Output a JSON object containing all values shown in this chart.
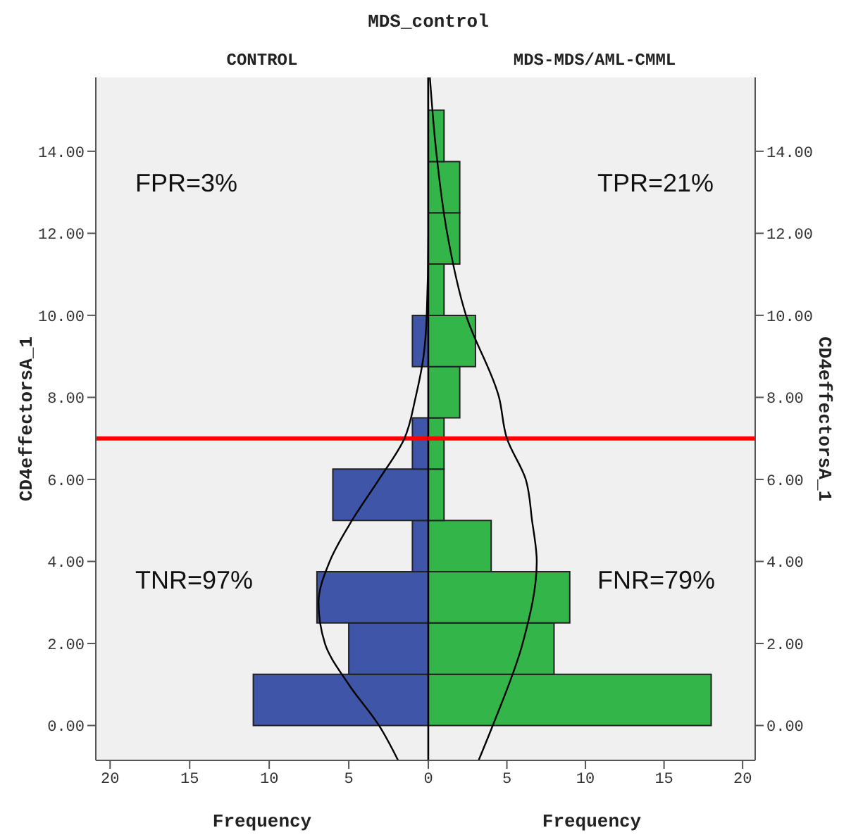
{
  "chart_data": [
    {
      "type": "histogram",
      "orientation": "horizontal",
      "title": "MDS_control",
      "subtitle": "CONTROL",
      "xlabel": "Frequency",
      "ylabel": "CD4effectorsA_1",
      "color": "#3f56a8",
      "bins": [
        0,
        1.25,
        2.5,
        3.75,
        5,
        6.25,
        7.5,
        8.75,
        10,
        11.25,
        12.5,
        13.75,
        15
      ],
      "values": [
        11,
        5,
        7,
        1,
        6,
        1,
        0,
        1,
        0,
        0,
        0,
        0
      ],
      "series": [
        {
          "type": "line",
          "color": "#000000",
          "x": [
            -0.85,
            0,
            1,
            2,
            3,
            4,
            5,
            6,
            7,
            8,
            9,
            10,
            12,
            15.8
          ],
          "values": [
            1.9,
            3.1,
            5,
            6.5,
            6.9,
            6.2,
            4.8,
            3.1,
            1.5,
            0.8,
            0.3,
            0.1,
            0,
            0
          ]
        }
      ],
      "xlim": [
        20.9,
        0
      ],
      "xticks": [
        20,
        15,
        10,
        5,
        {
          "value": 0,
          "label": null
        }
      ],
      "ylim": [
        -0.85,
        15.8
      ],
      "yticks": [
        {
          "value": 0,
          "label": "0.00"
        },
        {
          "value": 2,
          "label": "2.00"
        },
        {
          "value": 4,
          "label": "4.00"
        },
        {
          "value": 6,
          "label": "6.00"
        },
        {
          "value": 8,
          "label": "8.00"
        },
        {
          "value": 10,
          "label": "10.00"
        },
        {
          "value": 12,
          "label": "12.00"
        },
        {
          "value": 14,
          "label": "14.00"
        }
      ],
      "ref_lines": [
        {
          "axis": "y",
          "value": 7,
          "color": "#ff0000"
        }
      ],
      "annotations": [
        "FPR=3%",
        "TNR=97%"
      ],
      "grid": false
    },
    {
      "type": "histogram",
      "orientation": "horizontal",
      "subtitle": "MDS-MDS/AML-CMML",
      "xlabel": "Frequency",
      "ylabel": "CD4effectorsA_1",
      "color": "#33b54a",
      "bins": [
        0,
        1.25,
        2.5,
        3.75,
        5,
        6.25,
        7.5,
        8.75,
        10,
        11.25,
        12.5,
        13.75,
        15
      ],
      "values": [
        18,
        8,
        9,
        4,
        1,
        1,
        2,
        3,
        1,
        2,
        2,
        1
      ],
      "series": [
        {
          "type": "line",
          "color": "#000000",
          "x": [
            -0.85,
            0,
            2,
            4,
            5,
            6,
            7,
            8,
            10,
            12,
            14,
            15.8
          ],
          "values": [
            3.2,
            4.1,
            6,
            6.9,
            6.6,
            6.2,
            5,
            4.5,
            2.4,
            1.2,
            0.5,
            0.1
          ]
        }
      ],
      "xlim": [
        0,
        20.8
      ],
      "xticks": [
        0,
        5,
        10,
        15,
        20
      ],
      "ylim": [
        -0.85,
        15.8
      ],
      "yticks": [
        {
          "value": 0,
          "label": "0.00"
        },
        {
          "value": 2,
          "label": "2.00"
        },
        {
          "value": 4,
          "label": "4.00"
        },
        {
          "value": 6,
          "label": "6.00"
        },
        {
          "value": 8,
          "label": "8.00"
        },
        {
          "value": 10,
          "label": "10.00"
        },
        {
          "value": 12,
          "label": "12.00"
        },
        {
          "value": 14,
          "label": "14.00"
        }
      ],
      "ref_lines": [
        {
          "axis": "y",
          "value": 7,
          "color": "#ff0000"
        }
      ],
      "annotations": [
        "TPR=21%",
        "FNR=79%"
      ],
      "grid": false
    }
  ]
}
